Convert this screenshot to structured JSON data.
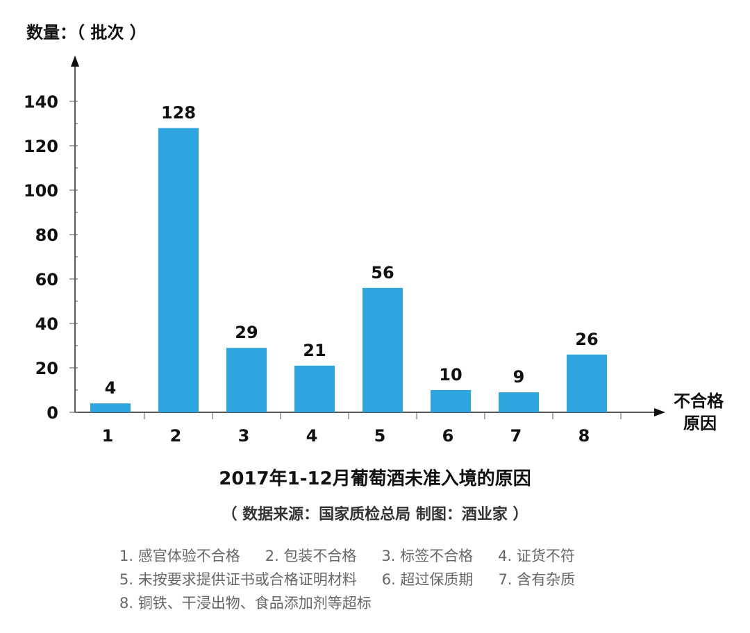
{
  "chart_data": {
    "type": "bar",
    "title": "2017年1-12月葡萄酒未准入境的原因",
    "subtitle": "（ 数据来源：国家质检总局  制图：酒业家 ）",
    "ylabel": "数量：（ 批次 ）",
    "xlabel": [
      "不合格",
      "原因"
    ],
    "categories": [
      "1",
      "2",
      "3",
      "4",
      "5",
      "6",
      "7",
      "8"
    ],
    "values": [
      4,
      128,
      29,
      21,
      56,
      10,
      9,
      26
    ],
    "ylim": [
      0,
      150
    ],
    "yticks": [
      "0",
      "20",
      "40",
      "60",
      "80",
      "100",
      "120",
      "140"
    ],
    "grid": false,
    "bar_color": "#2ea5de",
    "watermark": "酒业家",
    "legend_lines": [
      [
        "1. 感官体验不合格",
        "2. 包装不合格",
        "3. 标签不合格",
        "4. 证货不符"
      ],
      [
        "5. 未按要求提供证书或合格证明材料",
        "6. 超过保质期",
        "7. 含有杂质"
      ],
      [
        "8. 铜铁、干浸出物、食品添加剂等超标"
      ]
    ]
  }
}
